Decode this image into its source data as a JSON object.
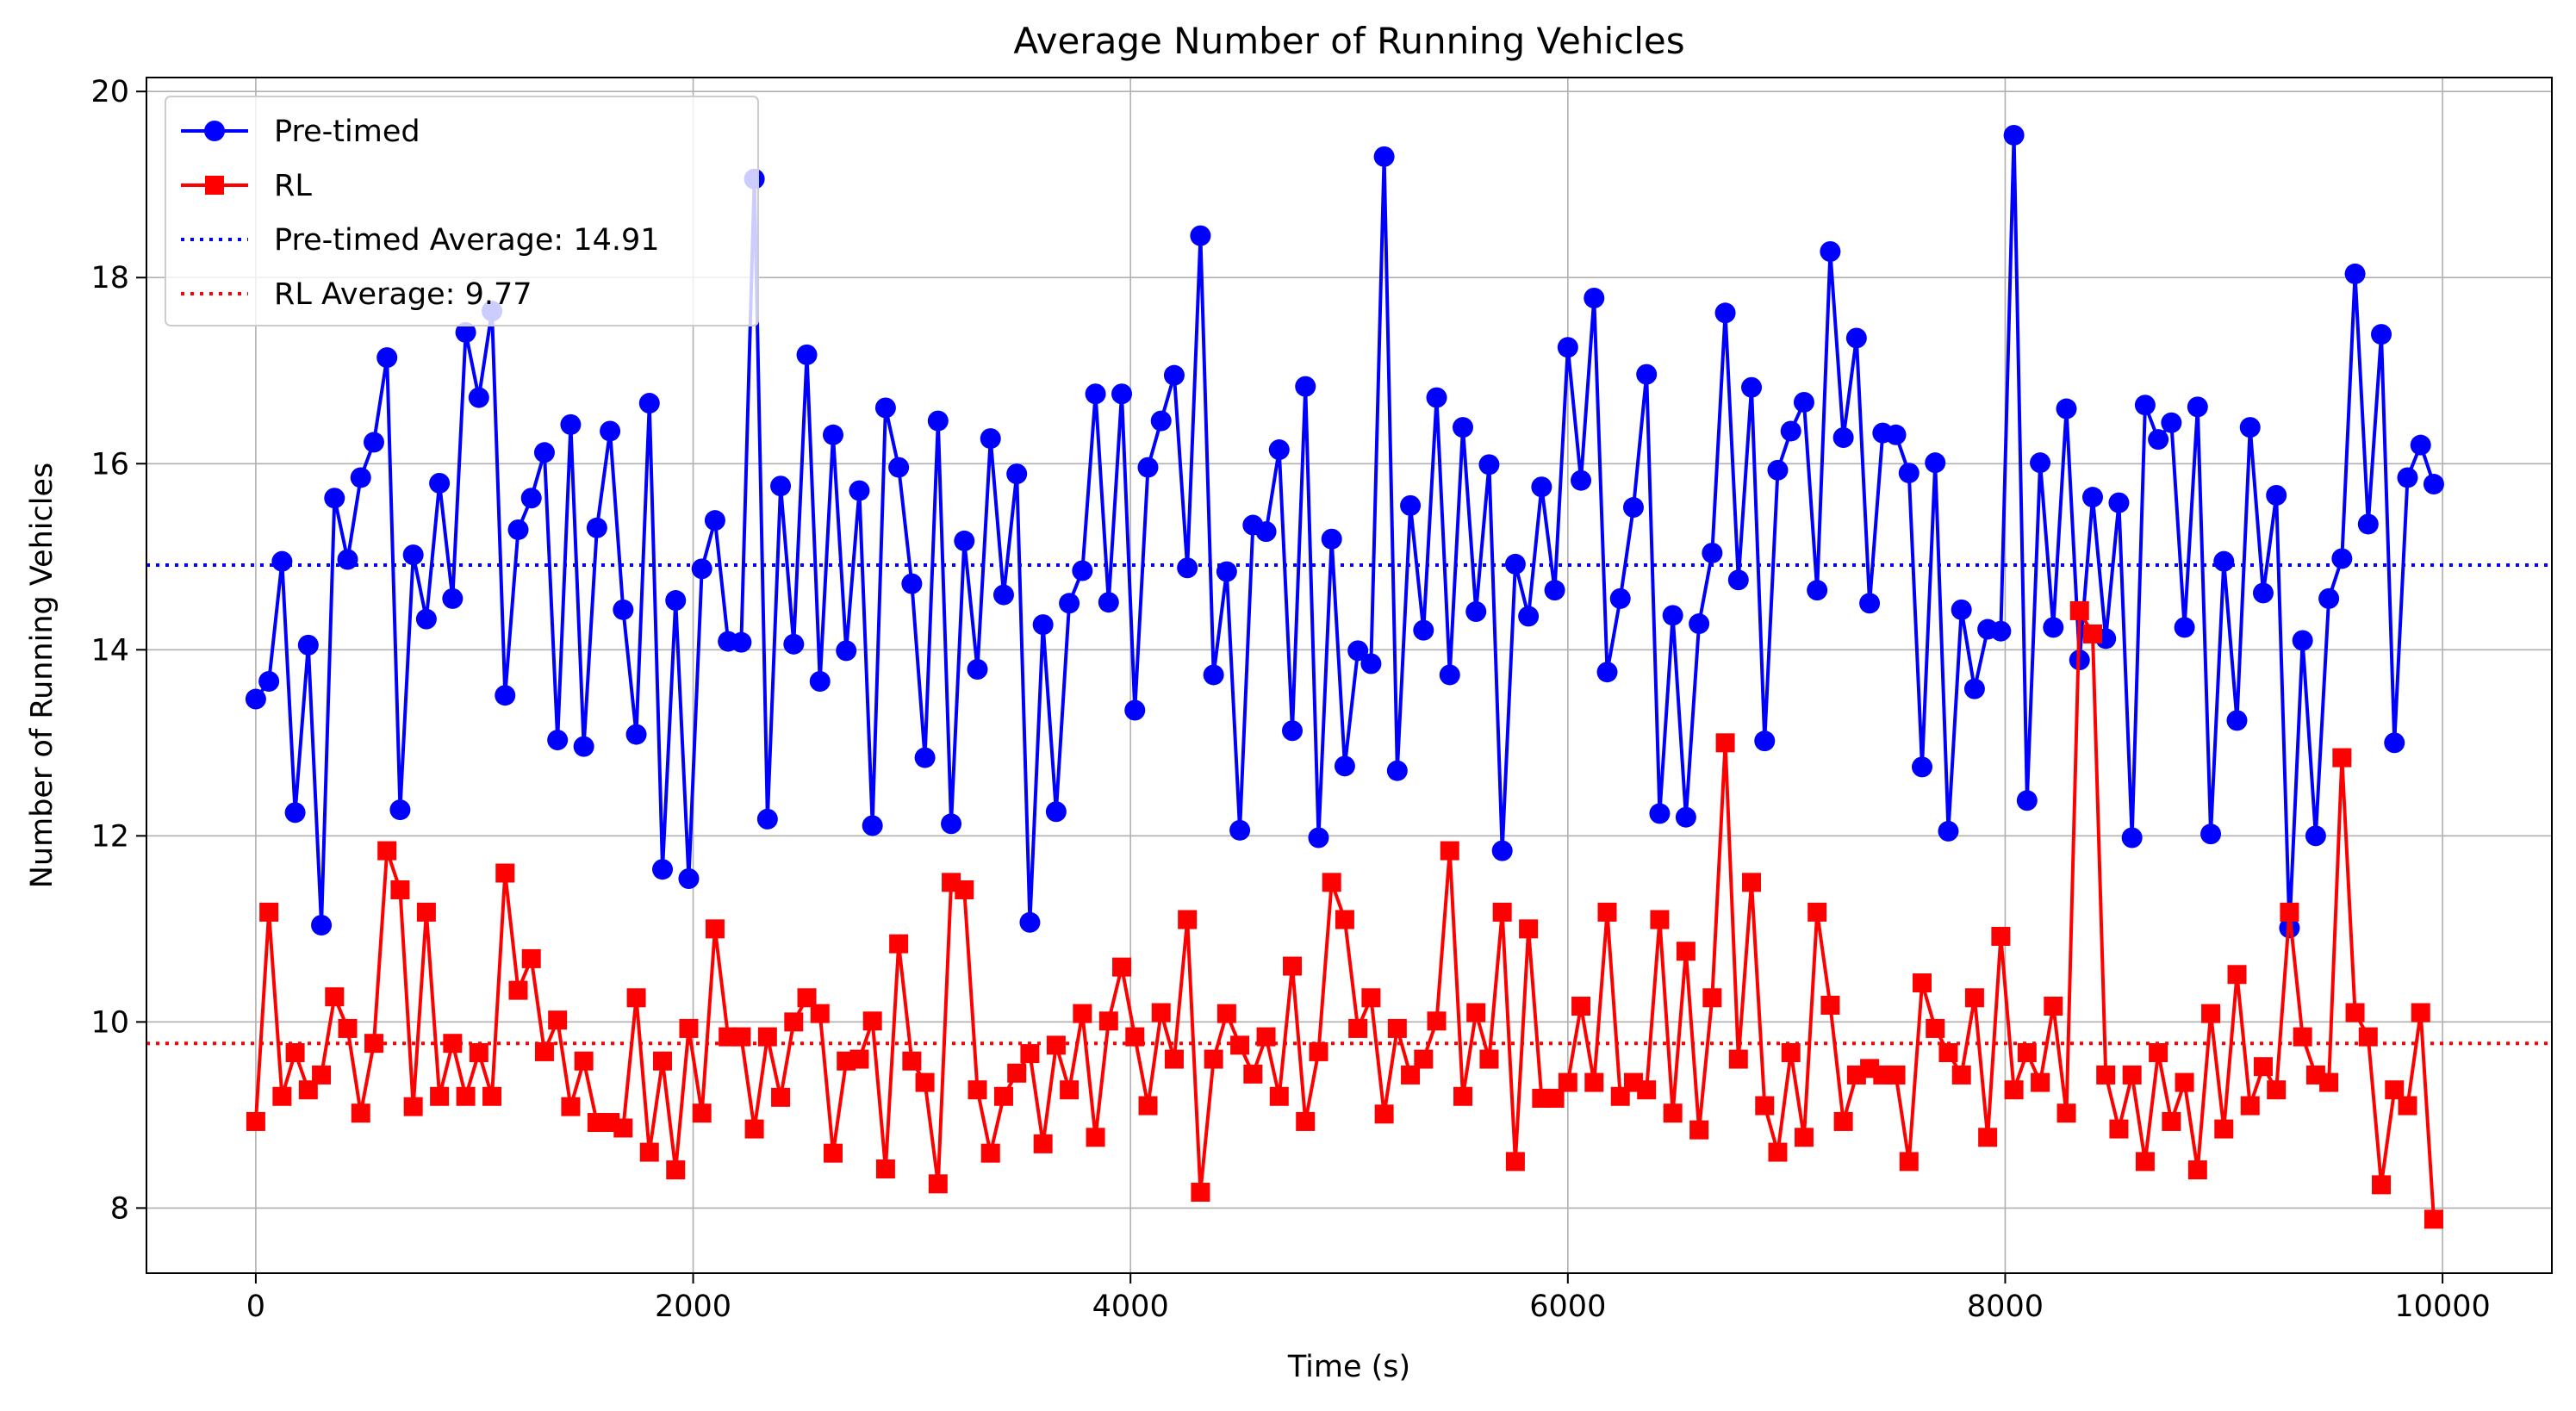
{
  "chart_data": {
    "type": "line",
    "title": "Average Number of Running Vehicles",
    "xlabel": "Time (s)",
    "ylabel": "Number of Running Vehicles",
    "xlim": [
      -500,
      10500
    ],
    "ylim": [
      7.3,
      20.15
    ],
    "xticks": [
      0,
      2000,
      4000,
      6000,
      8000,
      10000
    ],
    "yticks": [
      8,
      10,
      12,
      14,
      16,
      18,
      20
    ],
    "grid": true,
    "legend_position": "top-left",
    "x": [
      0,
      60,
      120,
      180,
      240,
      300,
      360,
      420,
      480,
      540,
      600,
      660,
      720,
      780,
      840,
      900,
      960,
      1020,
      1080,
      1140,
      1200,
      1260,
      1320,
      1380,
      1440,
      1500,
      1560,
      1620,
      1680,
      1740,
      1800,
      1860,
      1920,
      1980,
      2040,
      2100,
      2160,
      2220,
      2280,
      2340,
      2400,
      2460,
      2520,
      2580,
      2640,
      2700,
      2760,
      2820,
      2880,
      2940,
      3000,
      3060,
      3120,
      3180,
      3240,
      3300,
      3360,
      3420,
      3480,
      3540,
      3600,
      3660,
      3720,
      3780,
      3840,
      3900,
      3960,
      4020,
      4080,
      4140,
      4200,
      4260,
      4320,
      4380,
      4440,
      4500,
      4560,
      4620,
      4680,
      4740,
      4800,
      4860,
      4920,
      4980,
      5040,
      5100,
      5160,
      5220,
      5280,
      5340,
      5400,
      5460,
      5520,
      5580,
      5640,
      5700,
      5760,
      5820,
      5880,
      5940,
      6000,
      6060,
      6120,
      6180,
      6240,
      6300,
      6360,
      6420,
      6480,
      6540,
      6600,
      6660,
      6720,
      6780,
      6840,
      6900,
      6960,
      7020,
      7080,
      7140,
      7200,
      7260,
      7320,
      7380,
      7440,
      7500,
      7560,
      7620,
      7680,
      7740,
      7800,
      7860,
      7920,
      7980,
      8040,
      8100,
      8160,
      8220,
      8280,
      8340,
      8400,
      8460,
      8520,
      8580,
      8640,
      8700,
      8760,
      8820,
      8880,
      8940,
      9000,
      9060,
      9120,
      9180,
      9240,
      9300,
      9360,
      9420,
      9480,
      9540,
      9600,
      9660,
      9720,
      9780,
      9840,
      9900,
      9960
    ],
    "series": [
      {
        "name": "Pre-timed",
        "color": "#0000ff",
        "marker": "circle",
        "values": [
          13.47,
          13.66,
          14.95,
          12.25,
          14.05,
          11.04,
          15.63,
          14.97,
          15.85,
          16.23,
          17.14,
          12.28,
          15.02,
          14.33,
          15.79,
          14.55,
          17.41,
          16.71,
          17.64,
          13.51,
          15.29,
          15.63,
          16.12,
          13.03,
          16.42,
          12.96,
          15.31,
          16.35,
          14.43,
          13.09,
          16.65,
          11.64,
          14.53,
          11.54,
          14.87,
          15.39,
          14.09,
          14.08,
          19.06,
          12.18,
          15.76,
          14.06,
          17.17,
          13.66,
          16.31,
          13.99,
          15.71,
          12.11,
          16.6,
          15.96,
          14.71,
          12.84,
          16.46,
          12.13,
          15.17,
          13.79,
          16.27,
          14.59,
          15.89,
          11.07,
          14.27,
          12.26,
          14.5,
          14.85,
          16.75,
          14.51,
          16.75,
          13.35,
          15.96,
          16.46,
          16.95,
          14.88,
          18.45,
          13.73,
          14.84,
          12.06,
          15.34,
          15.27,
          16.15,
          13.13,
          16.83,
          11.98,
          15.19,
          12.75,
          13.99,
          13.85,
          19.3,
          12.7,
          15.55,
          14.21,
          16.71,
          13.73,
          16.39,
          14.41,
          15.99,
          11.84,
          14.92,
          14.36,
          15.75,
          14.64,
          17.25,
          15.82,
          17.78,
          13.76,
          14.55,
          15.53,
          16.96,
          12.24,
          14.37,
          12.2,
          14.28,
          15.04,
          17.62,
          14.75,
          16.82,
          13.02,
          15.93,
          16.35,
          16.66,
          14.64,
          18.28,
          16.28,
          17.35,
          14.5,
          16.33,
          16.31,
          15.9,
          12.74,
          16.01,
          12.05,
          14.43,
          13.58,
          14.22,
          14.2,
          19.53,
          12.38,
          16.01,
          14.24,
          16.59,
          13.89,
          15.64,
          14.12,
          15.58,
          11.98,
          16.63,
          16.26,
          16.44,
          14.24,
          16.61,
          12.02,
          14.95,
          13.24,
          16.39,
          14.61,
          15.66,
          11.01,
          14.1,
          12.0,
          14.55,
          14.98,
          18.04,
          15.35,
          17.39,
          13.0,
          15.85,
          16.2,
          15.78
        ]
      },
      {
        "name": "RL",
        "color": "#ff0000",
        "marker": "square",
        "values": [
          8.93,
          11.18,
          9.2,
          9.67,
          9.27,
          9.43,
          10.27,
          9.93,
          9.02,
          9.77,
          11.84,
          11.42,
          9.09,
          11.18,
          9.2,
          9.77,
          9.2,
          9.67,
          9.2,
          11.6,
          10.34,
          10.68,
          9.68,
          10.02,
          9.09,
          9.58,
          8.92,
          8.92,
          8.86,
          10.26,
          8.6,
          9.58,
          8.41,
          9.93,
          9.02,
          11.0,
          9.84,
          9.84,
          8.85,
          9.84,
          9.19,
          10.0,
          10.26,
          10.09,
          8.59,
          9.58,
          9.6,
          10.01,
          8.42,
          10.84,
          9.58,
          9.35,
          8.26,
          11.5,
          11.42,
          9.27,
          8.59,
          9.2,
          9.45,
          9.66,
          8.69,
          9.75,
          9.27,
          10.09,
          8.76,
          10.01,
          10.59,
          9.84,
          9.1,
          10.1,
          9.6,
          11.1,
          8.17,
          9.6,
          10.09,
          9.75,
          9.44,
          9.84,
          9.2,
          10.6,
          8.93,
          9.68,
          11.5,
          11.1,
          9.93,
          10.26,
          9.01,
          9.93,
          9.43,
          9.6,
          10.01,
          11.84,
          9.2,
          10.1,
          9.6,
          11.18,
          8.5,
          11.0,
          9.18,
          9.18,
          9.35,
          10.17,
          9.35,
          11.18,
          9.2,
          9.35,
          9.27,
          11.1,
          9.02,
          10.76,
          8.84,
          10.26,
          13.0,
          9.6,
          11.5,
          9.1,
          8.6,
          9.67,
          8.76,
          11.18,
          10.18,
          8.93,
          9.43,
          9.5,
          9.43,
          9.43,
          8.5,
          10.42,
          9.93,
          9.67,
          9.43,
          10.26,
          8.76,
          10.92,
          9.27,
          9.67,
          9.35,
          10.17,
          9.02,
          14.42,
          14.17,
          9.43,
          8.85,
          9.43,
          8.5,
          9.67,
          8.93,
          9.35,
          8.41,
          10.09,
          8.85,
          10.51,
          9.1,
          9.52,
          9.27,
          11.18,
          9.84,
          9.43,
          9.35,
          12.84,
          10.1,
          9.84,
          8.25,
          9.27,
          9.1,
          10.1,
          7.88
        ]
      }
    ],
    "reference_lines": [
      {
        "name": "Pre-timed Average: 14.91",
        "value": 14.91,
        "color": "#0000ff",
        "style": "dotted"
      },
      {
        "name": "RL Average: 9.77",
        "value": 9.77,
        "color": "#ff0000",
        "style": "dotted"
      }
    ]
  }
}
